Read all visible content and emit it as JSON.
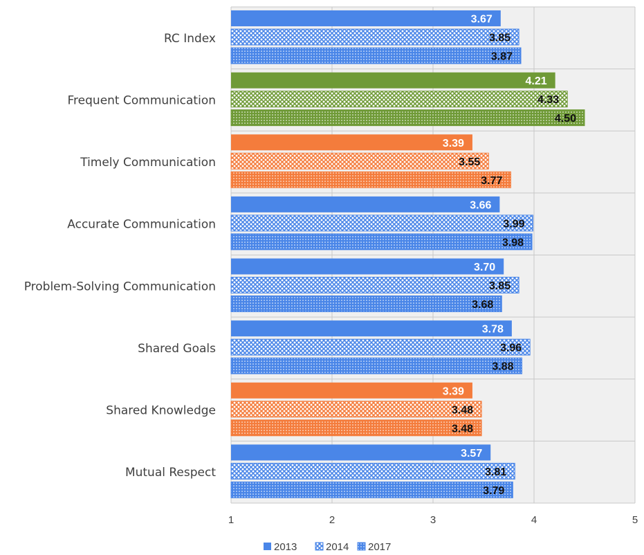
{
  "chart_data": {
    "type": "bar",
    "orientation": "horizontal",
    "categories": [
      "RC Index",
      "Frequent Communication",
      "Timely Communication",
      "Accurate Communication",
      "Problem-Solving Communication",
      "Shared Goals",
      "Shared Knowledge",
      "Mutual Respect"
    ],
    "series": [
      {
        "name": "2013",
        "values": [
          3.67,
          4.21,
          3.39,
          3.66,
          3.7,
          3.78,
          3.39,
          3.57
        ],
        "labels": [
          "3.67",
          "4.21",
          "3.39",
          "3.66",
          "3.70",
          "3.78",
          "3.39",
          "3.57"
        ]
      },
      {
        "name": "2014",
        "values": [
          3.85,
          4.33,
          3.55,
          3.99,
          3.85,
          3.96,
          3.48,
          3.81
        ],
        "labels": [
          "3.85",
          "4.33",
          "3.55",
          "3.99",
          "3.85",
          "3.96",
          "3.48",
          "3.81"
        ]
      },
      {
        "name": "2017",
        "values": [
          3.87,
          4.5,
          3.77,
          3.98,
          3.68,
          3.88,
          3.48,
          3.79
        ],
        "labels": [
          "3.87",
          "4.50",
          "3.77",
          "3.98",
          "3.68",
          "3.88",
          "3.48",
          "3.79"
        ]
      }
    ],
    "category_colors": [
      "#4a86e8",
      "#6f9a37",
      "#f47c3c",
      "#4a86e8",
      "#4a86e8",
      "#4a86e8",
      "#f47c3c",
      "#4a86e8"
    ],
    "xlim": [
      1,
      5
    ],
    "xticks": [
      "1",
      "2",
      "3",
      "4",
      "5"
    ],
    "title": "",
    "xlabel": "",
    "ylabel": "",
    "grid": true,
    "legend_position": "bottom"
  },
  "colors": {
    "blue": "#4a86e8",
    "green": "#6f9a37",
    "orange": "#f47c3c",
    "plot_background": "#f0f0f0",
    "gridline": "#c8c8c8"
  }
}
